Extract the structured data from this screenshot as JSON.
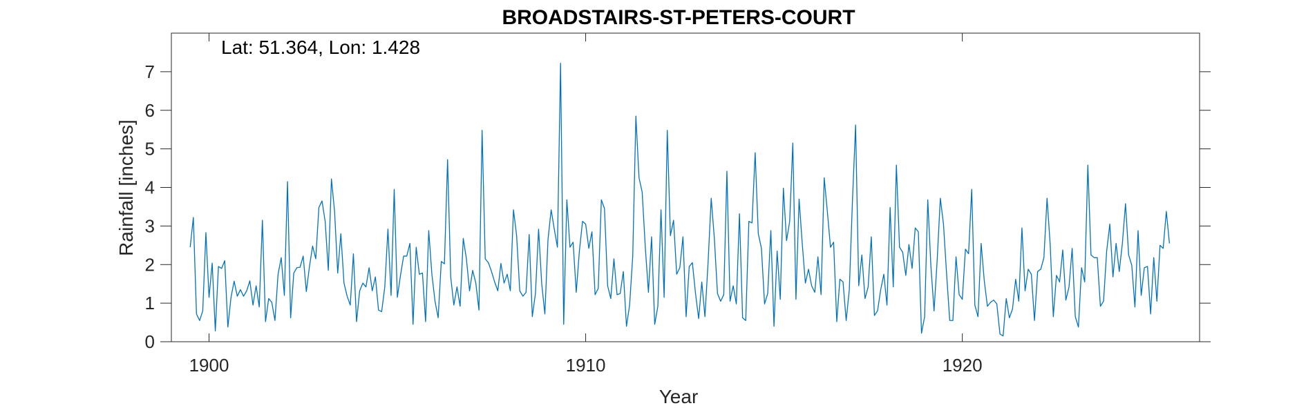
{
  "chart_data": {
    "type": "line",
    "title": "BROADSTAIRS-ST-PETERS-COURT",
    "annotation": "Lat: 51.364, Lon: 1.428",
    "xlabel": "Year",
    "ylabel": "Rainfall [inches]",
    "xlim": [
      1899,
      1926.3
    ],
    "ylim": [
      0,
      8
    ],
    "x_ticks": [
      1900,
      1910,
      1920
    ],
    "y_ticks": [
      0,
      1,
      2,
      3,
      4,
      5,
      6,
      7
    ],
    "grid": false,
    "line_color": "#0072BD",
    "series": [
      {
        "x_start": 1899.5,
        "x_step": 0.083333,
        "values": [
          2.45,
          3.22,
          0.72,
          0.55,
          0.8,
          2.83,
          1.15,
          2.04,
          0.28,
          1.95,
          1.9,
          2.1,
          0.38,
          1.15,
          1.57,
          1.18,
          1.35,
          1.18,
          1.32,
          1.58,
          0.95,
          1.45,
          0.9,
          3.15,
          0.52,
          1.12,
          1.02,
          0.55,
          1.75,
          2.18,
          1.2,
          4.15,
          0.62,
          1.78,
          1.92,
          1.93,
          2.22,
          1.3,
          1.95,
          2.48,
          2.15,
          3.48,
          3.65,
          3.12,
          1.85,
          4.22,
          3.38,
          1.78,
          2.8,
          1.52,
          1.18,
          0.95,
          2.28,
          0.52,
          1.32,
          1.52,
          1.42,
          1.92,
          1.32,
          1.68,
          0.82,
          0.78,
          1.42,
          2.92,
          1.2,
          3.95,
          1.15,
          1.72,
          2.22,
          2.22,
          2.55,
          0.45,
          2.45,
          1.75,
          1.78,
          0.52,
          2.88,
          1.75,
          1.05,
          0.62,
          2.08,
          2.02,
          4.72,
          1.68,
          0.95,
          1.42,
          0.92,
          2.68,
          2.15,
          1.32,
          1.85,
          1.52,
          0.82,
          5.48,
          2.15,
          2.05,
          1.82,
          1.55,
          1.32,
          2.03,
          1.52,
          1.75,
          1.32,
          3.42,
          2.75,
          1.32,
          1.18,
          1.28,
          2.78,
          0.65,
          1.25,
          2.92,
          1.5,
          0.72,
          2.65,
          3.42,
          2.92,
          2.45,
          7.22,
          0.45,
          3.68,
          2.45,
          2.58,
          1.28,
          2.35,
          3.12,
          3.05,
          2.42,
          2.85,
          1.22,
          1.38,
          3.68,
          3.45,
          1.45,
          1.12,
          2.15,
          1.22,
          1.25,
          1.82,
          0.4,
          0.95,
          2.22,
          5.85,
          4.25,
          3.88,
          2.45,
          1.28,
          2.72,
          0.45,
          0.92,
          3.42,
          1.15,
          5.48,
          2.75,
          3.15,
          1.75,
          1.92,
          2.72,
          0.65,
          1.95,
          2.05,
          1.25,
          0.6,
          1.55,
          0.65,
          2.05,
          3.72,
          2.68,
          1.25,
          1.05,
          1.22,
          4.42,
          1.05,
          1.45,
          0.98,
          3.32,
          0.62,
          0.55,
          3.12,
          3.08,
          4.9,
          2.8,
          2.42,
          0.98,
          1.25,
          2.88,
          0.4,
          2.35,
          1.1,
          3.98,
          2.62,
          3.12,
          5.15,
          1.1,
          3.7,
          2.55,
          1.52,
          1.88,
          1.45,
          1.28,
          2.2,
          1.22,
          4.25,
          3.38,
          2.45,
          2.58,
          0.52,
          1.62,
          1.55,
          0.55,
          1.35,
          3.65,
          5.62,
          1.45,
          2.25,
          1.12,
          1.42,
          2.72,
          0.68,
          0.8,
          1.35,
          1.75,
          0.95,
          3.48,
          1.42,
          4.58,
          2.45,
          2.32,
          1.72,
          2.52,
          1.9,
          2.95,
          2.85,
          0.22,
          0.65,
          3.68,
          1.95,
          0.8,
          2.12,
          3.72,
          3.05,
          1.75,
          0.55,
          0.55,
          2.2,
          1.22,
          1.1,
          2.4,
          2.28,
          3.95,
          0.95,
          0.65,
          2.55,
          1.58,
          0.92,
          1.02,
          1.08,
          0.98,
          0.2,
          0.15,
          1.12,
          0.62,
          0.85,
          1.62,
          1.05,
          2.95,
          1.32,
          1.88,
          1.75,
          0.55,
          1.82,
          1.88,
          2.18,
          3.72,
          2.52,
          0.65,
          1.72,
          1.55,
          2.38,
          1.08,
          1.42,
          2.42,
          0.65,
          0.38,
          1.92,
          1.55,
          4.58,
          2.25,
          2.18,
          2.18,
          0.92,
          1.05,
          2.35,
          3.05,
          1.68,
          2.55,
          1.82,
          2.55,
          3.58,
          2.25,
          1.98,
          0.9,
          2.88,
          1.2,
          1.92,
          1.95,
          0.72,
          2.18,
          1.05,
          2.5,
          2.42,
          3.38,
          2.55
        ]
      }
    ]
  }
}
